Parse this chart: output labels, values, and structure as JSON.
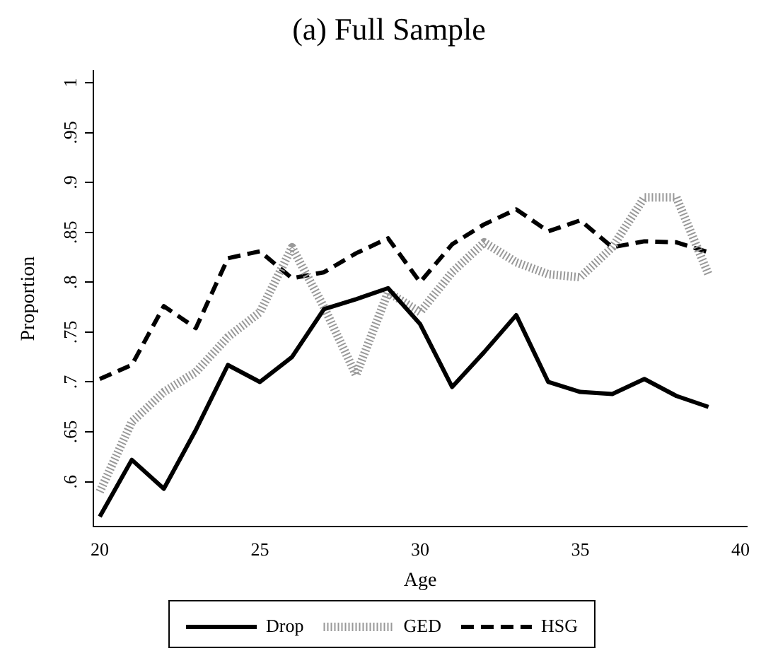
{
  "chart_data": {
    "type": "line",
    "title": "(a) Full Sample",
    "xlabel": "Age",
    "ylabel": "Proportion",
    "x": [
      20,
      21,
      22,
      23,
      24,
      25,
      26,
      27,
      28,
      29,
      30,
      31,
      32,
      33,
      34,
      35,
      36,
      37,
      38,
      39
    ],
    "series": [
      {
        "name": "Drop",
        "color": "#000000",
        "line_style": "solid",
        "values": [
          0.565,
          0.622,
          0.593,
          0.652,
          0.717,
          0.7,
          0.725,
          0.773,
          0.783,
          0.794,
          0.758,
          0.695,
          0.73,
          0.767,
          0.7,
          0.69,
          0.688,
          0.703,
          0.686,
          0.675
        ]
      },
      {
        "name": "GED",
        "color": "#999999",
        "line_style": "dotted",
        "values": [
          0.59,
          0.66,
          0.69,
          0.71,
          0.745,
          0.77,
          0.835,
          0.775,
          0.707,
          0.79,
          0.77,
          0.81,
          0.84,
          0.82,
          0.808,
          0.805,
          0.835,
          0.885,
          0.885,
          0.808
        ]
      },
      {
        "name": "HSG",
        "color": "#000000",
        "line_style": "dashed",
        "values": [
          0.703,
          0.717,
          0.776,
          0.754,
          0.824,
          0.831,
          0.804,
          0.81,
          0.829,
          0.844,
          0.8,
          0.838,
          0.858,
          0.873,
          0.851,
          0.862,
          0.835,
          0.841,
          0.84,
          0.83
        ]
      }
    ],
    "xlim": [
      19.8,
      40.2
    ],
    "xticks": [
      20,
      25,
      30,
      35,
      40
    ],
    "ylim": [
      0.555,
      1.012
    ],
    "yticks": [
      {
        "value": 0.6,
        "label": ".6"
      },
      {
        "value": 0.65,
        "label": ".65"
      },
      {
        "value": 0.7,
        "label": ".7"
      },
      {
        "value": 0.75,
        "label": ".75"
      },
      {
        "value": 0.8,
        "label": ".8"
      },
      {
        "value": 0.85,
        "label": ".85"
      },
      {
        "value": 0.9,
        "label": ".9"
      },
      {
        "value": 0.95,
        "label": ".95"
      },
      1
    ],
    "grid": false,
    "legend": "bottom",
    "marker": "none"
  }
}
